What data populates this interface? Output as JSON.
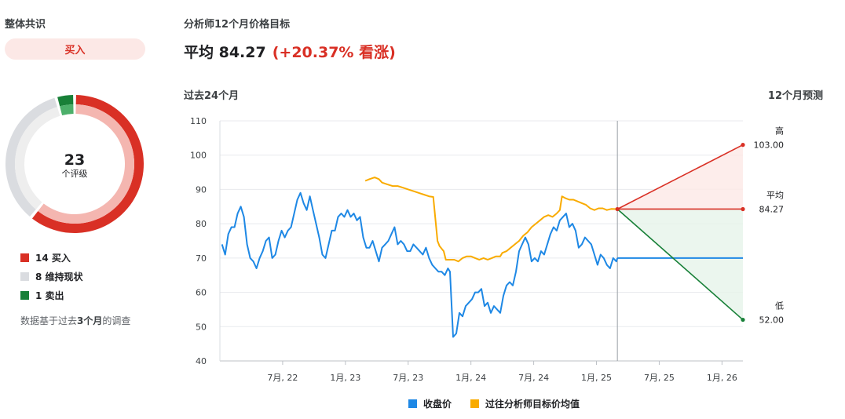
{
  "consensus": {
    "title": "整体共识",
    "verdict": "买入",
    "total": "23",
    "total_label": "个评级",
    "segments": [
      {
        "key": "buy",
        "count": 14,
        "label": "14 买入",
        "color": "#d93025"
      },
      {
        "key": "hold",
        "count": 8,
        "label": "8 维持现状",
        "color": "#dadce0"
      },
      {
        "key": "sell",
        "count": 1,
        "label": "1 卖出",
        "color": "#188038"
      }
    ],
    "note_prefix": "数据基于过去",
    "note_bold": "3个月",
    "note_suffix": "的调查"
  },
  "target": {
    "title": "分析师12个月价格目标",
    "avg_text": "平均 84.27",
    "change_text": "(+20.37% 看涨)",
    "past_label": "过去24个月",
    "forecast_label": "12个月预测"
  },
  "chart_data": {
    "type": "line",
    "ylim": [
      40,
      110
    ],
    "yticks": [
      40,
      50,
      60,
      70,
      80,
      90,
      100,
      110
    ],
    "xticks": [
      {
        "t": 6,
        "label": "7月, 22"
      },
      {
        "t": 12,
        "label": "1月, 23"
      },
      {
        "t": 18,
        "label": "7月, 23"
      },
      {
        "t": 24,
        "label": "1月, 24"
      },
      {
        "t": 30,
        "label": "7月, 24"
      },
      {
        "t": 36,
        "label": "1月, 25"
      },
      {
        "t": 42,
        "label": "7月, 25"
      },
      {
        "t": 48,
        "label": "1月, 26"
      }
    ],
    "now_t": 38,
    "end_t": 50,
    "last_close": 70,
    "colors": {
      "close": "#1e88e5",
      "target": "#f9ab00",
      "high": "#d93025",
      "avg": "#d93025",
      "low": "#188038"
    },
    "series": [
      {
        "name": "收盘价",
        "key": "close",
        "points": [
          [
            0.2,
            74
          ],
          [
            0.5,
            71
          ],
          [
            0.8,
            77
          ],
          [
            1.1,
            79
          ],
          [
            1.4,
            79
          ],
          [
            1.7,
            83
          ],
          [
            2.0,
            85
          ],
          [
            2.3,
            82
          ],
          [
            2.6,
            74
          ],
          [
            2.9,
            70
          ],
          [
            3.2,
            69
          ],
          [
            3.5,
            67
          ],
          [
            3.8,
            70
          ],
          [
            4.1,
            72
          ],
          [
            4.4,
            75
          ],
          [
            4.7,
            76
          ],
          [
            5.0,
            70
          ],
          [
            5.3,
            71
          ],
          [
            5.6,
            75
          ],
          [
            5.9,
            78
          ],
          [
            6.2,
            76
          ],
          [
            6.5,
            78
          ],
          [
            6.8,
            79
          ],
          [
            7.1,
            83
          ],
          [
            7.4,
            87
          ],
          [
            7.7,
            89
          ],
          [
            8.0,
            86
          ],
          [
            8.3,
            84
          ],
          [
            8.6,
            88
          ],
          [
            8.9,
            84
          ],
          [
            9.2,
            80
          ],
          [
            9.5,
            76
          ],
          [
            9.8,
            71
          ],
          [
            10.1,
            70
          ],
          [
            10.4,
            74
          ],
          [
            10.7,
            78
          ],
          [
            11.0,
            78
          ],
          [
            11.3,
            82
          ],
          [
            11.6,
            83
          ],
          [
            11.9,
            82
          ],
          [
            12.2,
            84
          ],
          [
            12.5,
            82
          ],
          [
            12.8,
            83
          ],
          [
            13.1,
            81
          ],
          [
            13.4,
            82
          ],
          [
            13.7,
            76
          ],
          [
            14.0,
            73
          ],
          [
            14.3,
            73
          ],
          [
            14.6,
            75
          ],
          [
            14.9,
            72
          ],
          [
            15.2,
            69
          ],
          [
            15.5,
            73
          ],
          [
            15.8,
            74
          ],
          [
            16.1,
            75
          ],
          [
            16.4,
            77
          ],
          [
            16.7,
            79
          ],
          [
            17.0,
            74
          ],
          [
            17.3,
            75
          ],
          [
            17.6,
            74
          ],
          [
            17.9,
            72
          ],
          [
            18.2,
            72
          ],
          [
            18.5,
            74
          ],
          [
            18.8,
            73
          ],
          [
            19.1,
            72
          ],
          [
            19.4,
            71
          ],
          [
            19.7,
            73
          ],
          [
            20.0,
            70
          ],
          [
            20.3,
            68
          ],
          [
            20.6,
            67
          ],
          [
            20.9,
            66
          ],
          [
            21.2,
            66
          ],
          [
            21.5,
            65
          ],
          [
            21.8,
            67
          ],
          [
            22.0,
            66
          ],
          [
            22.3,
            47
          ],
          [
            22.6,
            48
          ],
          [
            22.9,
            54
          ],
          [
            23.2,
            53
          ],
          [
            23.5,
            56
          ],
          [
            23.8,
            57
          ],
          [
            24.1,
            58
          ],
          [
            24.4,
            60
          ],
          [
            24.7,
            60
          ],
          [
            25.0,
            61
          ],
          [
            25.3,
            56
          ],
          [
            25.6,
            57
          ],
          [
            25.9,
            54
          ],
          [
            26.2,
            56
          ],
          [
            26.5,
            55
          ],
          [
            26.8,
            54
          ],
          [
            27.1,
            59
          ],
          [
            27.4,
            62
          ],
          [
            27.7,
            63
          ],
          [
            28.0,
            62
          ],
          [
            28.3,
            66
          ],
          [
            28.6,
            72
          ],
          [
            28.9,
            74
          ],
          [
            29.2,
            76
          ],
          [
            29.5,
            74
          ],
          [
            29.8,
            69
          ],
          [
            30.1,
            70
          ],
          [
            30.4,
            69
          ],
          [
            30.7,
            72
          ],
          [
            31.0,
            71
          ],
          [
            31.3,
            74
          ],
          [
            31.6,
            77
          ],
          [
            31.9,
            79
          ],
          [
            32.2,
            78
          ],
          [
            32.5,
            81
          ],
          [
            32.8,
            82
          ],
          [
            33.1,
            83
          ],
          [
            33.4,
            79
          ],
          [
            33.7,
            80
          ],
          [
            34.0,
            78
          ],
          [
            34.3,
            73
          ],
          [
            34.6,
            74
          ],
          [
            34.9,
            76
          ],
          [
            35.2,
            75
          ],
          [
            35.5,
            74
          ],
          [
            35.8,
            71
          ],
          [
            36.1,
            68
          ],
          [
            36.4,
            71
          ],
          [
            36.7,
            70
          ],
          [
            37.0,
            68
          ],
          [
            37.3,
            67
          ],
          [
            37.6,
            70
          ],
          [
            37.9,
            69
          ],
          [
            38.0,
            70
          ]
        ]
      },
      {
        "name": "过往分析师目标价均值",
        "key": "target",
        "points": [
          [
            13.9,
            92.5
          ],
          [
            14.3,
            93
          ],
          [
            14.8,
            93.5
          ],
          [
            15.2,
            93
          ],
          [
            15.5,
            92
          ],
          [
            16.0,
            91.5
          ],
          [
            16.5,
            91
          ],
          [
            17.0,
            91
          ],
          [
            17.5,
            90.5
          ],
          [
            18.0,
            90
          ],
          [
            18.5,
            89.5
          ],
          [
            19.0,
            89
          ],
          [
            19.5,
            88.5
          ],
          [
            20.0,
            88
          ],
          [
            20.4,
            87.8
          ],
          [
            20.8,
            75
          ],
          [
            21.0,
            73.5
          ],
          [
            21.4,
            72
          ],
          [
            21.6,
            69.5
          ],
          [
            22.0,
            69.5
          ],
          [
            22.4,
            69.5
          ],
          [
            22.8,
            69
          ],
          [
            23.2,
            70
          ],
          [
            23.6,
            70.5
          ],
          [
            24.0,
            70.5
          ],
          [
            24.4,
            70
          ],
          [
            24.8,
            69.5
          ],
          [
            25.2,
            70
          ],
          [
            25.6,
            69.5
          ],
          [
            26.0,
            70
          ],
          [
            26.4,
            70.5
          ],
          [
            26.8,
            70.5
          ],
          [
            27.0,
            71.5
          ],
          [
            27.4,
            72
          ],
          [
            27.8,
            73
          ],
          [
            28.2,
            74
          ],
          [
            28.6,
            75
          ],
          [
            29.0,
            76.5
          ],
          [
            29.4,
            77.5
          ],
          [
            29.8,
            79
          ],
          [
            30.2,
            80
          ],
          [
            30.6,
            81
          ],
          [
            31.0,
            82
          ],
          [
            31.4,
            82.5
          ],
          [
            31.8,
            82
          ],
          [
            32.2,
            83
          ],
          [
            32.5,
            84
          ],
          [
            32.7,
            88
          ],
          [
            33.0,
            87.5
          ],
          [
            33.4,
            87
          ],
          [
            33.8,
            87
          ],
          [
            34.2,
            86.5
          ],
          [
            34.6,
            86
          ],
          [
            35.0,
            85.5
          ],
          [
            35.4,
            84.5
          ],
          [
            35.8,
            84
          ],
          [
            36.2,
            84.5
          ],
          [
            36.6,
            84.5
          ],
          [
            37.0,
            84
          ],
          [
            37.4,
            84.3
          ],
          [
            38.0,
            84.27
          ]
        ]
      }
    ],
    "forecast": {
      "high": {
        "label": "高",
        "value": 103.0,
        "text": "103.00"
      },
      "avg": {
        "label": "平均",
        "value": 84.27,
        "text": "84.27"
      },
      "low": {
        "label": "低",
        "value": 52.0,
        "text": "52.00"
      }
    }
  }
}
